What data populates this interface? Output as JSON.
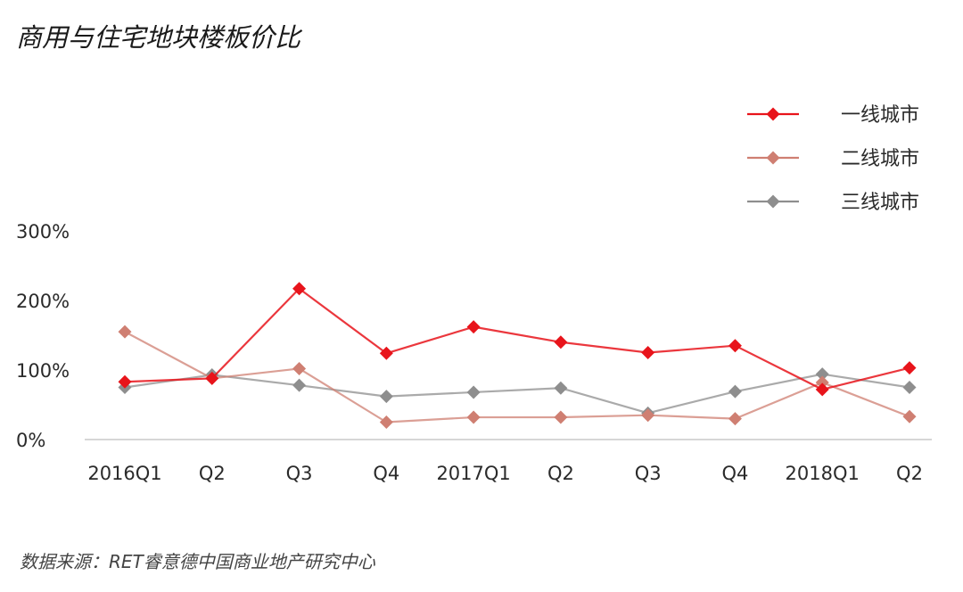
{
  "chart_data": {
    "type": "line",
    "title": "商用与住宅地块楼板价比",
    "source": "数据来源：RET睿意德中国商业地产研究中心",
    "categories": [
      "2016Q1",
      "Q2",
      "Q3",
      "Q4",
      "2017Q1",
      "Q2",
      "Q3",
      "Q4",
      "2018Q1",
      "Q2"
    ],
    "y_ticks": [
      "0%",
      "100%",
      "200%",
      "300%"
    ],
    "ylim": [
      0,
      300
    ],
    "unit": "%",
    "grid": false,
    "legend_position": "top-right",
    "series": [
      {
        "name": "一线城市",
        "color": "#e8141b",
        "values": [
          83,
          88,
          217,
          124,
          162,
          140,
          125,
          135,
          72,
          103
        ]
      },
      {
        "name": "二线城市",
        "color": "#cf7f72",
        "values": [
          155,
          88,
          102,
          25,
          32,
          32,
          35,
          30,
          82,
          33
        ]
      },
      {
        "name": "三线城市",
        "color": "#8e8e8e",
        "values": [
          75,
          93,
          78,
          62,
          68,
          74,
          38,
          69,
          94,
          75
        ]
      }
    ]
  }
}
